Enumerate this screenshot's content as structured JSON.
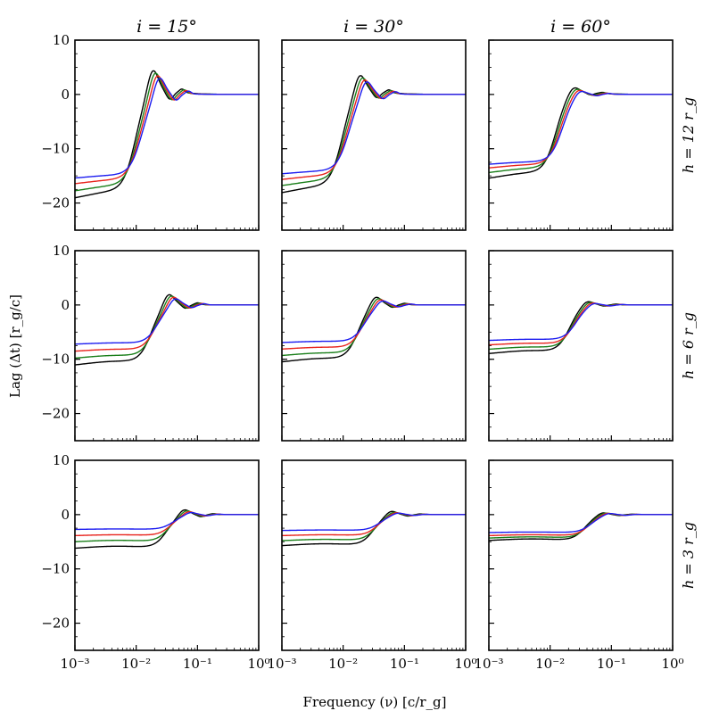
{
  "figure": {
    "xlabel": "Frequency (ν) [c/r_g]",
    "ylabel": "Lag (Δt) [r_g/c]",
    "column_titles": [
      "i = 15°",
      "i = 30°",
      "i = 60°"
    ],
    "row_labels": [
      "h = 12 r_g",
      "h = 6 r_g",
      "h = 3 r_g"
    ],
    "x_tick_labels": [
      "10⁻³",
      "10⁻²",
      "10⁻¹",
      "10⁰"
    ],
    "y_tick_labels": [
      "10",
      "0",
      "−10",
      "−20"
    ],
    "series_colors": [
      "#000000",
      "#1a7f1a",
      "#e8231c",
      "#1c1cf0"
    ]
  },
  "chart_data": [
    {
      "type": "line",
      "row": 0,
      "col": 0,
      "xscale": "log",
      "xlim": [
        0.001,
        1
      ],
      "ylim": [
        -25,
        10
      ],
      "peak_freq": 0.021,
      "series": [
        {
          "color": "#000000",
          "low": -20.0,
          "peak": 4.2
        },
        {
          "color": "#1a7f1a",
          "low": -18.5,
          "peak": 4.0
        },
        {
          "color": "#e8231c",
          "low": -17.0,
          "peak": 3.7
        },
        {
          "color": "#1c1cf0",
          "low": -15.8,
          "peak": 3.4
        }
      ]
    },
    {
      "type": "line",
      "row": 0,
      "col": 1,
      "xscale": "log",
      "xlim": [
        0.001,
        1
      ],
      "ylim": [
        -25,
        10
      ],
      "peak_freq": 0.021,
      "series": [
        {
          "color": "#000000",
          "low": -19.0,
          "peak": 3.3
        },
        {
          "color": "#1a7f1a",
          "low": -17.5,
          "peak": 3.1
        },
        {
          "color": "#e8231c",
          "low": -16.2,
          "peak": 2.9
        },
        {
          "color": "#1c1cf0",
          "low": -15.0,
          "peak": 2.7
        }
      ]
    },
    {
      "type": "line",
      "row": 0,
      "col": 2,
      "xscale": "log",
      "xlim": [
        0.001,
        1
      ],
      "ylim": [
        -25,
        10
      ],
      "peak_freq": 0.027,
      "series": [
        {
          "color": "#000000",
          "low": -16.2,
          "peak": 1.2
        },
        {
          "color": "#1a7f1a",
          "low": -15.0,
          "peak": 1.1
        },
        {
          "color": "#e8231c",
          "low": -14.0,
          "peak": 1.0
        },
        {
          "color": "#1c1cf0",
          "low": -13.2,
          "peak": 0.9
        }
      ]
    },
    {
      "type": "line",
      "row": 1,
      "col": 0,
      "xscale": "log",
      "xlim": [
        0.001,
        1
      ],
      "ylim": [
        -25,
        10
      ],
      "peak_freq": 0.038,
      "series": [
        {
          "color": "#000000",
          "low": -11.6,
          "peak": 2.1
        },
        {
          "color": "#1a7f1a",
          "low": -10.2,
          "peak": 1.9
        },
        {
          "color": "#e8231c",
          "low": -8.8,
          "peak": 1.7
        },
        {
          "color": "#1c1cf0",
          "low": -7.4,
          "peak": 1.4
        }
      ]
    },
    {
      "type": "line",
      "row": 1,
      "col": 1,
      "xscale": "log",
      "xlim": [
        0.001,
        1
      ],
      "ylim": [
        -25,
        10
      ],
      "peak_freq": 0.038,
      "series": [
        {
          "color": "#000000",
          "low": -11.0,
          "peak": 1.6
        },
        {
          "color": "#1a7f1a",
          "low": -9.7,
          "peak": 1.4
        },
        {
          "color": "#e8231c",
          "low": -8.4,
          "peak": 1.2
        },
        {
          "color": "#1c1cf0",
          "low": -7.1,
          "peak": 1.0
        }
      ]
    },
    {
      "type": "line",
      "row": 1,
      "col": 2,
      "xscale": "log",
      "xlim": [
        0.001,
        1
      ],
      "ylim": [
        -25,
        10
      ],
      "peak_freq": 0.045,
      "series": [
        {
          "color": "#000000",
          "low": -9.4,
          "peak": 0.8
        },
        {
          "color": "#1a7f1a",
          "low": -8.5,
          "peak": 0.7
        },
        {
          "color": "#e8231c",
          "low": -7.6,
          "peak": 0.6
        },
        {
          "color": "#1c1cf0",
          "low": -6.7,
          "peak": 0.5
        }
      ]
    },
    {
      "type": "line",
      "row": 2,
      "col": 0,
      "xscale": "log",
      "xlim": [
        0.001,
        1
      ],
      "ylim": [
        -25,
        10
      ],
      "peak_freq": 0.068,
      "series": [
        {
          "color": "#000000",
          "low": -6.5,
          "peak": 1.1
        },
        {
          "color": "#1a7f1a",
          "low": -5.2,
          "peak": 0.9
        },
        {
          "color": "#e8231c",
          "low": -4.0,
          "peak": 0.7
        },
        {
          "color": "#1c1cf0",
          "low": -2.8,
          "peak": 0.5
        }
      ]
    },
    {
      "type": "line",
      "row": 2,
      "col": 1,
      "xscale": "log",
      "xlim": [
        0.001,
        1
      ],
      "ylim": [
        -25,
        10
      ],
      "peak_freq": 0.068,
      "series": [
        {
          "color": "#000000",
          "low": -6.0,
          "peak": 0.8
        },
        {
          "color": "#1a7f1a",
          "low": -5.0,
          "peak": 0.6
        },
        {
          "color": "#e8231c",
          "low": -4.0,
          "peak": 0.5
        },
        {
          "color": "#1c1cf0",
          "low": -3.0,
          "peak": 0.4
        }
      ]
    },
    {
      "type": "line",
      "row": 2,
      "col": 2,
      "xscale": "log",
      "xlim": [
        0.001,
        1
      ],
      "ylim": [
        -25,
        10
      ],
      "peak_freq": 0.08,
      "series": [
        {
          "color": "#000000",
          "low": -5.0,
          "peak": 0.5
        },
        {
          "color": "#1a7f1a",
          "low": -4.5,
          "peak": 0.45
        },
        {
          "color": "#e8231c",
          "low": -4.0,
          "peak": 0.4
        },
        {
          "color": "#1c1cf0",
          "low": -3.4,
          "peak": 0.35
        }
      ]
    }
  ]
}
